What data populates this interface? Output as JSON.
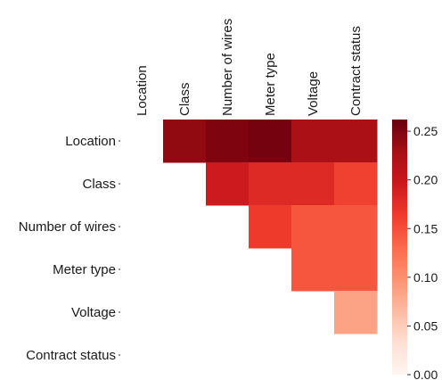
{
  "chart_data": {
    "type": "heatmap",
    "title": "",
    "xlabel": "",
    "ylabel": "",
    "row_labels": [
      "Location",
      "Class",
      "Number of wires",
      "Meter type",
      "Voltage",
      "Contract status"
    ],
    "col_labels": [
      "Location",
      "Class",
      "Number of wires",
      "Meter type",
      "Voltage",
      "Contract status"
    ],
    "mask": "lower triangle and diagonal hidden",
    "values": [
      [
        null,
        0.24,
        0.25,
        0.255,
        0.225,
        0.225
      ],
      [
        null,
        null,
        0.195,
        0.18,
        0.18,
        0.16
      ],
      [
        null,
        null,
        null,
        0.165,
        0.145,
        0.145
      ],
      [
        null,
        null,
        null,
        null,
        0.145,
        0.145
      ],
      [
        null,
        null,
        null,
        null,
        null,
        0.085
      ],
      [
        null,
        null,
        null,
        null,
        null,
        null
      ]
    ],
    "colorbar": {
      "cmap": "Reds",
      "range": [
        0,
        0.262
      ],
      "ticks": [
        "0.00",
        "0.05",
        "0.10",
        "0.15",
        "0.20",
        "0.25"
      ],
      "tick_values": [
        0,
        0.05,
        0.1,
        0.15,
        0.2,
        0.25
      ]
    }
  }
}
